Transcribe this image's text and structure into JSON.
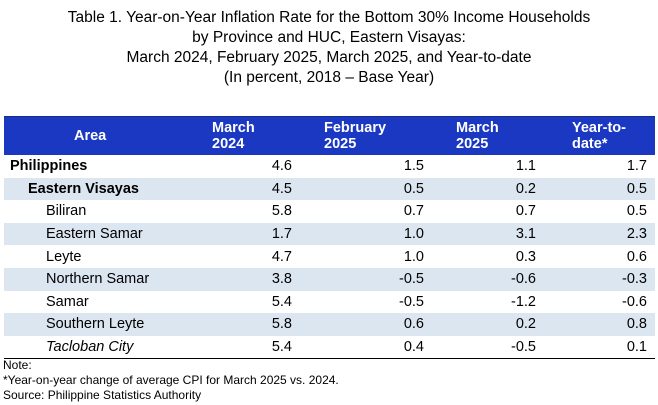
{
  "title": {
    "line1": "Table 1. Year-on-Year Inflation Rate for the Bottom 30% Income Households",
    "line2": "by Province and HUC, Eastern Visayas:",
    "line3": "March 2024, February 2025, March 2025, and Year-to-date",
    "line4": "(In percent, 2018 – Base Year)"
  },
  "table": {
    "headers": {
      "area": "Area",
      "col1_l1": "March",
      "col1_l2": "2024",
      "col2_l1": "February",
      "col2_l2": "2025",
      "col3_l1": "March",
      "col3_l2": "2025",
      "col4_l1": "Year-to-",
      "col4_l2": "date*"
    },
    "rows": [
      {
        "area": "Philippines",
        "v1": "4.6",
        "v2": "1.5",
        "v3": "1.1",
        "v4": "1.7"
      },
      {
        "area": "Eastern Visayas",
        "v1": "4.5",
        "v2": "0.5",
        "v3": "0.2",
        "v4": "0.5"
      },
      {
        "area": "Biliran",
        "v1": "5.8",
        "v2": "0.7",
        "v3": "0.7",
        "v4": "0.5"
      },
      {
        "area": "Eastern Samar",
        "v1": "1.7",
        "v2": "1.0",
        "v3": "3.1",
        "v4": "2.3"
      },
      {
        "area": "Leyte",
        "v1": "4.7",
        "v2": "1.0",
        "v3": "0.3",
        "v4": "0.6"
      },
      {
        "area": "Northern Samar",
        "v1": "3.8",
        "v2": "-0.5",
        "v3": "-0.6",
        "v4": "-0.3"
      },
      {
        "area": "Samar",
        "v1": "5.4",
        "v2": "-0.5",
        "v3": "-1.2",
        "v4": "-0.6"
      },
      {
        "area": "Southern Leyte",
        "v1": "5.8",
        "v2": "0.6",
        "v3": "0.2",
        "v4": "0.8"
      },
      {
        "area": "Tacloban City",
        "v1": "5.4",
        "v2": "0.4",
        "v3": "-0.5",
        "v4": "0.1"
      }
    ]
  },
  "notes": {
    "label": "Note:",
    "footnote": "*Year-on-year change of average CPI for March 2025 vs. 2024.",
    "source": "Source: Philippine Statistics Authority"
  },
  "colors": {
    "header_bg": "#1a38c2",
    "stripe_bg": "#dce6f1"
  }
}
